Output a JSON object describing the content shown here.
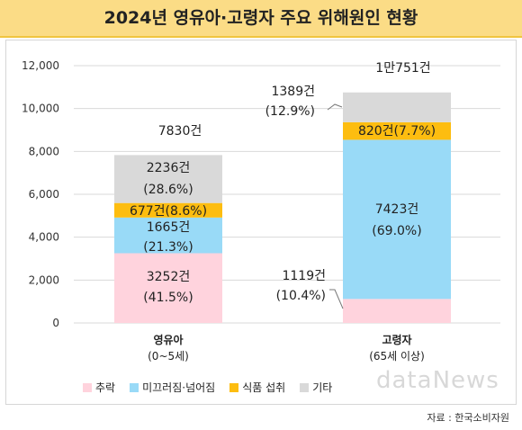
{
  "title": "2024년 영유아·고령자 주요 위해원인 현황",
  "source": "자료 : 한국소비자원",
  "watermark": "dataNews",
  "colors": {
    "fall": "#ffd3dd",
    "slip": "#99daf7",
    "food": "#fdbd10",
    "other": "#d9d9d9",
    "title_bg": "#fbdc86",
    "grid": "#d9d9d9"
  },
  "chart_data": {
    "type": "bar",
    "stacked": true,
    "categories": [
      {
        "line1": "영유아",
        "line2": "(0~5세)"
      },
      {
        "line1": "고령자",
        "line2": "(65세 이상)"
      }
    ],
    "ylim": [
      0,
      12000
    ],
    "yticks": [
      0,
      2000,
      4000,
      6000,
      8000,
      10000,
      12000
    ],
    "ytick_labels": [
      "0",
      "2,000",
      "4,000",
      "6,000",
      "8,000",
      "10,000",
      "12,000"
    ],
    "series": [
      {
        "name": "추락",
        "color_key": "fall",
        "values": [
          3252,
          1119
        ],
        "labels": [
          [
            "3252건",
            "(41.5%)"
          ],
          [
            "1119건",
            "(10.4%)"
          ]
        ]
      },
      {
        "name": "미끄러짐·넘어짐",
        "color_key": "slip",
        "values": [
          1665,
          7423
        ],
        "labels": [
          [
            "1665건",
            "(21.3%)"
          ],
          [
            "7423건",
            "(69.0%)"
          ]
        ]
      },
      {
        "name": "식품 섭취",
        "color_key": "food",
        "values": [
          677,
          820
        ],
        "labels": [
          [
            "677건(8.6%)"
          ],
          [
            "820건(7.7%)"
          ]
        ]
      },
      {
        "name": "기타",
        "color_key": "other",
        "values": [
          2236,
          1389
        ],
        "labels": [
          [
            "2236건",
            "(28.6%)"
          ],
          [
            "1389건",
            "(12.9%)"
          ]
        ]
      }
    ],
    "totals": [
      "7830건",
      "1만751건"
    ],
    "grid": true,
    "legend_position": "bottom"
  }
}
